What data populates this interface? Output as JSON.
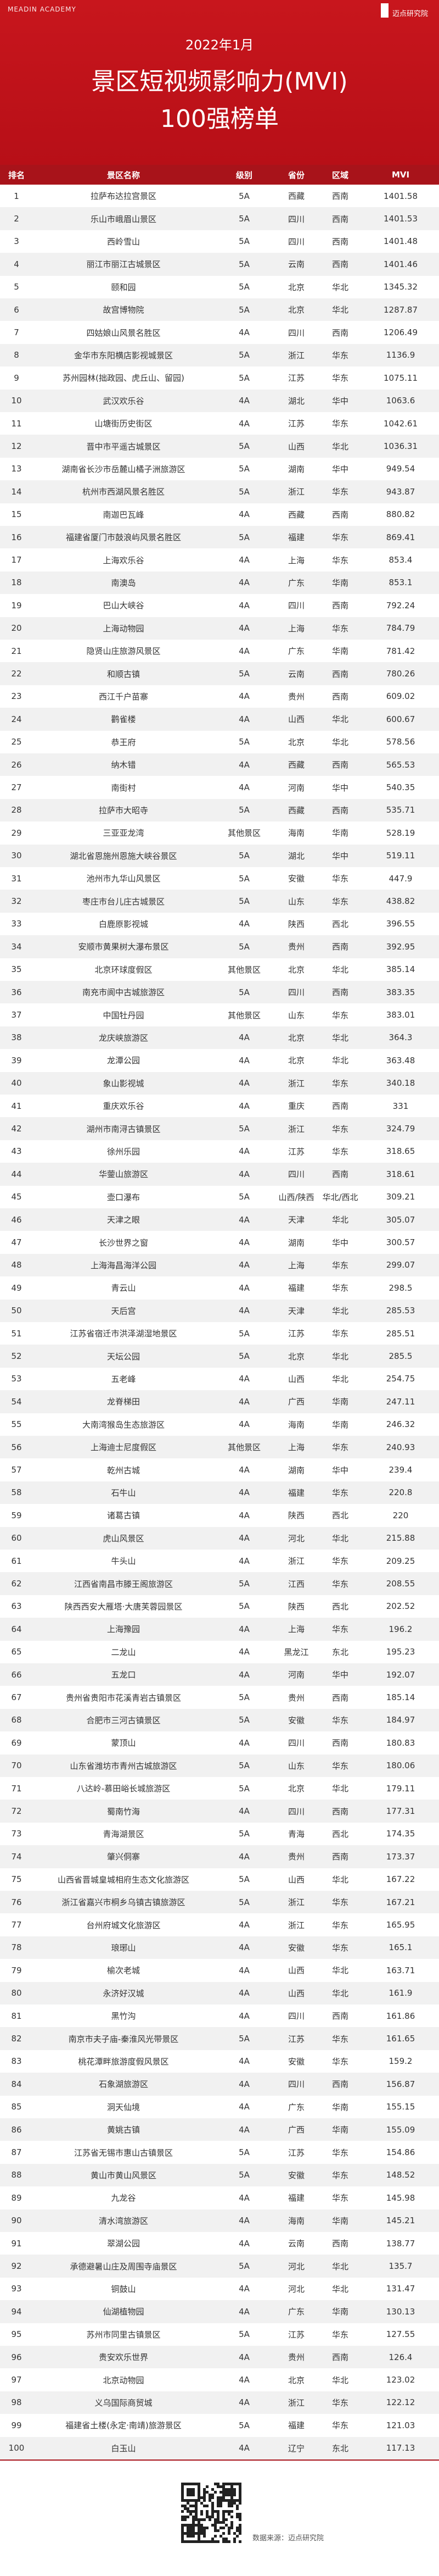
{
  "header": {
    "brand": "MEADIN ACADEMY",
    "logo": "迈点研究院",
    "date": "2022年1月",
    "title": "景区短视频影响力(MVI)",
    "subtitle": "100强榜单"
  },
  "table": {
    "columns": [
      "排名",
      "景区名称",
      "级别",
      "省份",
      "区域",
      "MVI"
    ],
    "rows": [
      [
        1,
        "拉萨布达拉宫景区",
        "5A",
        "西藏",
        "西南",
        1401.58
      ],
      [
        2,
        "乐山市峨眉山景区",
        "5A",
        "四川",
        "西南",
        1401.53
      ],
      [
        3,
        "西岭雪山",
        "5A",
        "四川",
        "西南",
        1401.48
      ],
      [
        4,
        "丽江市丽江古城景区",
        "5A",
        "云南",
        "西南",
        1401.46
      ],
      [
        5,
        "颐和园",
        "5A",
        "北京",
        "华北",
        1345.32
      ],
      [
        6,
        "故宫博物院",
        "5A",
        "北京",
        "华北",
        1287.87
      ],
      [
        7,
        "四姑娘山风景名胜区",
        "4A",
        "四川",
        "西南",
        1206.49
      ],
      [
        8,
        "金华市东阳横店影视城景区",
        "5A",
        "浙江",
        "华东",
        1136.9
      ],
      [
        9,
        "苏州园林(拙政园、虎丘山、留园)",
        "5A",
        "江苏",
        "华东",
        1075.11
      ],
      [
        10,
        "武汉欢乐谷",
        "4A",
        "湖北",
        "华中",
        1063.6
      ],
      [
        11,
        "山塘街历史街区",
        "4A",
        "江苏",
        "华东",
        1042.61
      ],
      [
        12,
        "晋中市平遥古城景区",
        "5A",
        "山西",
        "华北",
        1036.31
      ],
      [
        13,
        "湖南省长沙市岳麓山橘子洲旅游区",
        "5A",
        "湖南",
        "华中",
        949.54
      ],
      [
        14,
        "杭州市西湖风景名胜区",
        "5A",
        "浙江",
        "华东",
        943.87
      ],
      [
        15,
        "南迦巴瓦峰",
        "4A",
        "西藏",
        "西南",
        880.82
      ],
      [
        16,
        "福建省厦门市鼓浪屿风景名胜区",
        "5A",
        "福建",
        "华东",
        869.41
      ],
      [
        17,
        "上海欢乐谷",
        "4A",
        "上海",
        "华东",
        853.4
      ],
      [
        18,
        "南澳岛",
        "4A",
        "广东",
        "华南",
        853.1
      ],
      [
        19,
        "巴山大峡谷",
        "4A",
        "四川",
        "西南",
        792.24
      ],
      [
        20,
        "上海动物园",
        "4A",
        "上海",
        "华东",
        784.79
      ],
      [
        21,
        "隐贤山庄旅游风景区",
        "4A",
        "广东",
        "华南",
        781.42
      ],
      [
        22,
        "和顺古镇",
        "5A",
        "云南",
        "西南",
        780.26
      ],
      [
        23,
        "西江千户苗寨",
        "4A",
        "贵州",
        "西南",
        609.02
      ],
      [
        24,
        "鹳雀楼",
        "4A",
        "山西",
        "华北",
        600.67
      ],
      [
        25,
        "恭王府",
        "5A",
        "北京",
        "华北",
        578.56
      ],
      [
        26,
        "纳木错",
        "4A",
        "西藏",
        "西南",
        565.53
      ],
      [
        27,
        "南街村",
        "4A",
        "河南",
        "华中",
        540.35
      ],
      [
        28,
        "拉萨市大昭寺",
        "5A",
        "西藏",
        "西南",
        535.71
      ],
      [
        29,
        "三亚亚龙湾",
        "其他景区",
        "海南",
        "华南",
        528.19
      ],
      [
        30,
        "湖北省恩施州恩施大峡谷景区",
        "5A",
        "湖北",
        "华中",
        519.11
      ],
      [
        31,
        "池州市九华山风景区",
        "5A",
        "安徽",
        "华东",
        447.9
      ],
      [
        32,
        "枣庄市台儿庄古城景区",
        "5A",
        "山东",
        "华东",
        438.82
      ],
      [
        33,
        "白鹿原影视城",
        "4A",
        "陕西",
        "西北",
        396.55
      ],
      [
        34,
        "安顺市黄果树大瀑布景区",
        "5A",
        "贵州",
        "西南",
        392.95
      ],
      [
        35,
        "北京环球度假区",
        "其他景区",
        "北京",
        "华北",
        385.14
      ],
      [
        36,
        "南充市阆中古城旅游区",
        "5A",
        "四川",
        "西南",
        383.35
      ],
      [
        37,
        "中国牡丹园",
        "其他景区",
        "山东",
        "华东",
        383.01
      ],
      [
        38,
        "龙庆峡旅游区",
        "4A",
        "北京",
        "华北",
        364.3
      ],
      [
        39,
        "龙潭公园",
        "4A",
        "北京",
        "华北",
        363.48
      ],
      [
        40,
        "象山影视城",
        "4A",
        "浙江",
        "华东",
        340.18
      ],
      [
        41,
        "重庆欢乐谷",
        "4A",
        "重庆",
        "西南",
        331
      ],
      [
        42,
        "湖州市南浔古镇景区",
        "5A",
        "浙江",
        "华东",
        324.79
      ],
      [
        43,
        "徐州乐园",
        "4A",
        "江苏",
        "华东",
        318.65
      ],
      [
        44,
        "华蓥山旅游区",
        "4A",
        "四川",
        "西南",
        318.61
      ],
      [
        45,
        "壶口瀑布",
        "5A",
        "山西/陕西",
        "华北/西北",
        309.21
      ],
      [
        46,
        "天津之眼",
        "4A",
        "天津",
        "华北",
        305.07
      ],
      [
        47,
        "长沙世界之窗",
        "4A",
        "湖南",
        "华中",
        300.57
      ],
      [
        48,
        "上海海昌海洋公园",
        "4A",
        "上海",
        "华东",
        299.07
      ],
      [
        49,
        "青云山",
        "4A",
        "福建",
        "华东",
        298.5
      ],
      [
        50,
        "天后宫",
        "4A",
        "天津",
        "华北",
        285.53
      ],
      [
        51,
        "江苏省宿迁市洪泽湖湿地景区",
        "5A",
        "江苏",
        "华东",
        285.51
      ],
      [
        52,
        "天坛公园",
        "5A",
        "北京",
        "华北",
        285.5
      ],
      [
        53,
        "五老峰",
        "4A",
        "山西",
        "华北",
        254.75
      ],
      [
        54,
        "龙脊梯田",
        "4A",
        "广西",
        "华南",
        247.11
      ],
      [
        55,
        "大南湾猴岛生态旅游区",
        "4A",
        "海南",
        "华南",
        246.32
      ],
      [
        56,
        "上海迪士尼度假区",
        "其他景区",
        "上海",
        "华东",
        240.93
      ],
      [
        57,
        "乾州古城",
        "4A",
        "湖南",
        "华中",
        239.4
      ],
      [
        58,
        "石牛山",
        "4A",
        "福建",
        "华东",
        220.8
      ],
      [
        59,
        "诸葛古镇",
        "4A",
        "陕西",
        "西北",
        220
      ],
      [
        60,
        "虎山风景区",
        "4A",
        "河北",
        "华北",
        215.88
      ],
      [
        61,
        "牛头山",
        "4A",
        "浙江",
        "华东",
        209.25
      ],
      [
        62,
        "江西省南昌市滕王阁旅游区",
        "5A",
        "江西",
        "华东",
        208.55
      ],
      [
        63,
        "陕西西安大雁塔·大唐芙蓉园景区",
        "5A",
        "陕西",
        "西北",
        202.52
      ],
      [
        64,
        "上海豫园",
        "4A",
        "上海",
        "华东",
        196.2
      ],
      [
        65,
        "二龙山",
        "4A",
        "黑龙江",
        "东北",
        195.23
      ],
      [
        66,
        "五龙口",
        "4A",
        "河南",
        "华中",
        192.07
      ],
      [
        67,
        "贵州省贵阳市花溪青岩古镇景区",
        "5A",
        "贵州",
        "西南",
        185.14
      ],
      [
        68,
        "合肥市三河古镇景区",
        "5A",
        "安徽",
        "华东",
        184.97
      ],
      [
        69,
        "蒙顶山",
        "4A",
        "四川",
        "西南",
        180.83
      ],
      [
        70,
        "山东省潍坊市青州古城旅游区",
        "5A",
        "山东",
        "华东",
        180.06
      ],
      [
        71,
        "八达岭-慕田峪长城旅游区",
        "5A",
        "北京",
        "华北",
        179.11
      ],
      [
        72,
        "蜀南竹海",
        "4A",
        "四川",
        "西南",
        177.31
      ],
      [
        73,
        "青海湖景区",
        "5A",
        "青海",
        "西北",
        174.35
      ],
      [
        74,
        "肇兴侗寨",
        "4A",
        "贵州",
        "西南",
        173.37
      ],
      [
        75,
        "山西省晋城皇城相府生态文化旅游区",
        "5A",
        "山西",
        "华北",
        167.22
      ],
      [
        76,
        "浙江省嘉兴市桐乡乌镇古镇旅游区",
        "5A",
        "浙江",
        "华东",
        167.21
      ],
      [
        77,
        "台州府城文化旅游区",
        "4A",
        "浙江",
        "华东",
        165.95
      ],
      [
        78,
        "琅琊山",
        "4A",
        "安徽",
        "华东",
        165.1
      ],
      [
        79,
        "榆次老城",
        "4A",
        "山西",
        "华北",
        163.71
      ],
      [
        80,
        "永济好汉城",
        "4A",
        "山西",
        "华北",
        161.9
      ],
      [
        81,
        "黑竹沟",
        "4A",
        "四川",
        "西南",
        161.86
      ],
      [
        82,
        "南京市夫子庙-秦淮风光带景区",
        "5A",
        "江苏",
        "华东",
        161.65
      ],
      [
        83,
        "桃花潭畔旅游度假风景区",
        "4A",
        "安徽",
        "华东",
        159.2
      ],
      [
        84,
        "石象湖旅游区",
        "4A",
        "四川",
        "西南",
        156.87
      ],
      [
        85,
        "洞天仙境",
        "4A",
        "广东",
        "华南",
        155.15
      ],
      [
        86,
        "黄姚古镇",
        "4A",
        "广西",
        "华南",
        155.09
      ],
      [
        87,
        "江苏省无锡市惠山古镇景区",
        "5A",
        "江苏",
        "华东",
        154.86
      ],
      [
        88,
        "黄山市黄山风景区",
        "5A",
        "安徽",
        "华东",
        148.52
      ],
      [
        89,
        "九龙谷",
        "4A",
        "福建",
        "华东",
        145.98
      ],
      [
        90,
        "清水湾旅游区",
        "4A",
        "海南",
        "华南",
        145.21
      ],
      [
        91,
        "翠湖公园",
        "4A",
        "云南",
        "西南",
        138.77
      ],
      [
        92,
        "承德避暑山庄及周围寺庙景区",
        "5A",
        "河北",
        "华北",
        135.7
      ],
      [
        93,
        "铜鼓山",
        "4A",
        "河北",
        "华北",
        131.47
      ],
      [
        94,
        "仙湖植物园",
        "4A",
        "广东",
        "华南",
        130.13
      ],
      [
        95,
        "苏州市同里古镇景区",
        "5A",
        "江苏",
        "华东",
        127.55
      ],
      [
        96,
        "贵安欢乐世界",
        "4A",
        "贵州",
        "西南",
        126.4
      ],
      [
        97,
        "北京动物园",
        "4A",
        "北京",
        "华北",
        123.02
      ],
      [
        98,
        "义乌国际商贸城",
        "4A",
        "浙江",
        "华东",
        122.12
      ],
      [
        99,
        "福建省土楼(永定·南靖)旅游景区",
        "5A",
        "福建",
        "华东",
        121.03
      ],
      [
        100,
        "白玉山",
        "4A",
        "辽宁",
        "东北",
        117.13
      ]
    ]
  },
  "footer": {
    "source": "数据来源：迈点研究院"
  }
}
